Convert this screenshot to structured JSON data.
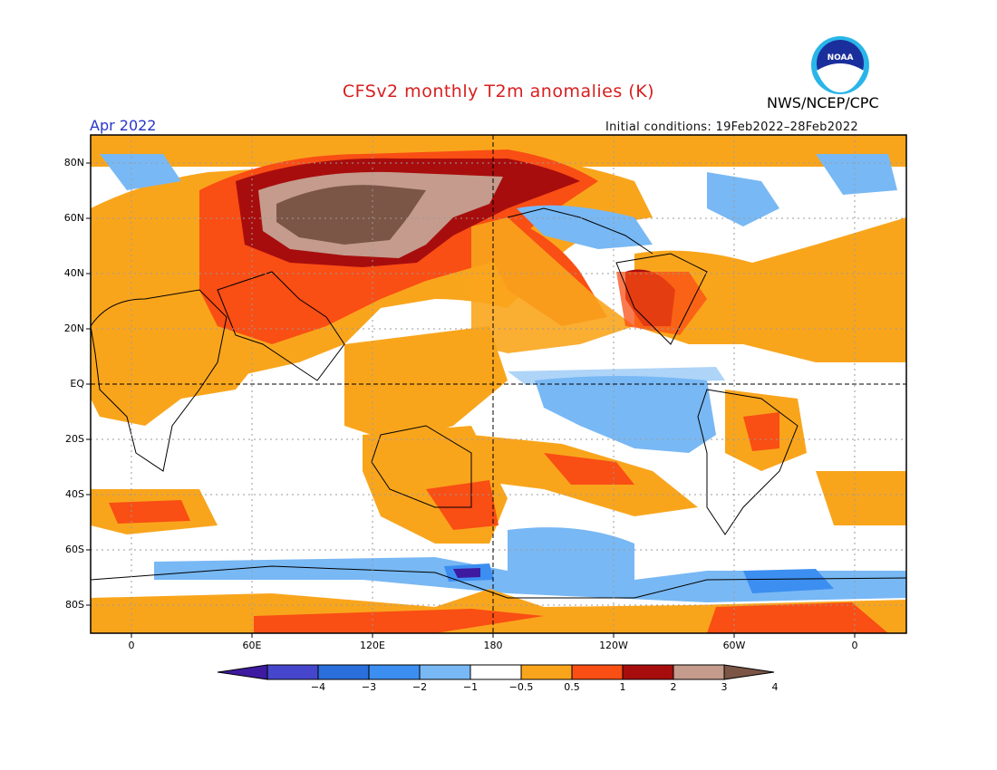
{
  "header": {
    "title": "CFSv2 monthly T2m anomalies (K)",
    "agency": "NWS/NCEP/CPC",
    "month": "Apr 2022",
    "initial_conditions": "Initial conditions: 19Feb2022–28Feb2022"
  },
  "logo": {
    "text": "NOAA",
    "icon": "noaa-logo-icon"
  },
  "map": {
    "lat_labels": [
      "80N",
      "60N",
      "40N",
      "20N",
      "EQ",
      "20S",
      "40S",
      "60S",
      "80S"
    ],
    "lon_labels": [
      "0",
      "60E",
      "120E",
      "180",
      "120W",
      "60W",
      "0"
    ],
    "gridlines": "dotted",
    "reference_lines": "dashed equator and 180 meridian"
  },
  "colorbar": {
    "labels": [
      "−4",
      "−3",
      "−2",
      "−1",
      "−0.5",
      "0.5",
      "1",
      "2",
      "3",
      "4"
    ],
    "colors": [
      "#3d1aa0",
      "#4646cc",
      "#2a6fdc",
      "#3c8ef0",
      "#78b8f4",
      "#ffffff",
      "#f9a51c",
      "#f94e14",
      "#a80d0d",
      "#c49b8c",
      "#7b5545"
    ]
  }
}
